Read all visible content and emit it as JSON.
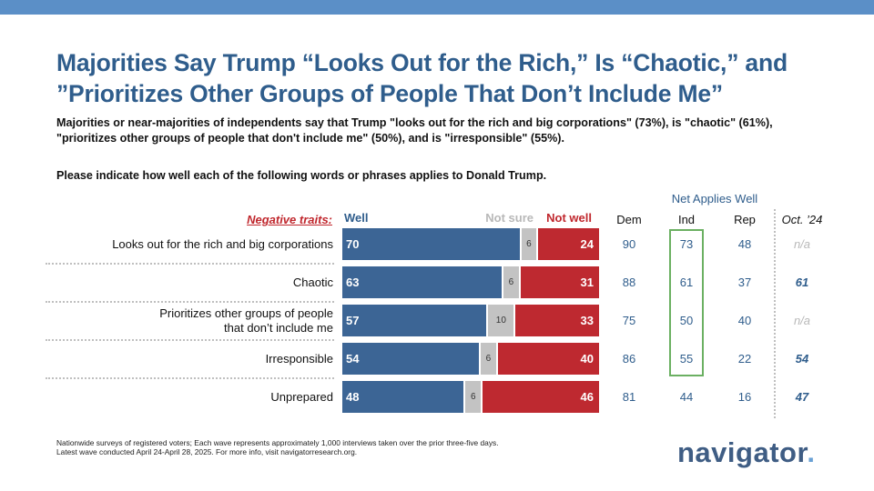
{
  "header": {
    "title_line1": "Majorities Say Trump “Looks Out for the Rich,” Is “Chaotic,” and",
    "title_line2": "”Prioritizes Other Groups of People That Don’t Include Me”",
    "subtitle_line1": "Majorities or near-majorities of independents say that Trump \"looks out for the rich and big corporations\" (73%), is \"chaotic\" (61%),",
    "subtitle_line2": "\"prioritizes other groups of people that don't include me\" (50%), and is \"irresponsible\" (55%).",
    "question": "Please indicate how well each of the following words or phrases applies to Donald Trump."
  },
  "colors": {
    "band": "#5b8fc7",
    "title": "#2f5d8c",
    "well": "#3c6595",
    "not_sure": "#c3c3c3",
    "not_well": "#be2930",
    "ind_highlight": "#6bb062"
  },
  "chart_data": {
    "type": "bar",
    "stacked": true,
    "orientation": "horizontal",
    "group_label": "Negative traits:",
    "categories": [
      "Looks out for the rich and big corporations",
      "Chaotic",
      "Prioritizes other groups of people that don’t include me",
      "Irresponsible",
      "Unprepared"
    ],
    "category_lines": [
      [
        "Looks out for the rich and big corporations"
      ],
      [
        "Chaotic"
      ],
      [
        "Prioritizes other groups of people",
        "that don’t include me"
      ],
      [
        "Irresponsible"
      ],
      [
        "Unprepared"
      ]
    ],
    "series": [
      {
        "name": "Well",
        "values": [
          70,
          63,
          57,
          54,
          48
        ]
      },
      {
        "name": "Not sure",
        "values": [
          6,
          6,
          10,
          6,
          6
        ]
      },
      {
        "name": "Not well",
        "values": [
          24,
          31,
          33,
          40,
          46
        ]
      }
    ],
    "xlim": [
      0,
      100
    ],
    "net_title": "Net Applies Well",
    "net_columns": [
      {
        "name": "Dem",
        "values": [
          "90",
          "88",
          "75",
          "86",
          "81"
        ]
      },
      {
        "name": "Ind",
        "values": [
          "73",
          "61",
          "50",
          "55",
          "44"
        ]
      },
      {
        "name": "Rep",
        "values": [
          "48",
          "37",
          "40",
          "22",
          "16"
        ]
      },
      {
        "name": "Oct. ’24",
        "values": [
          "n/a",
          "61",
          "n/a",
          "54",
          "47"
        ]
      }
    ],
    "highlight": {
      "column": "Ind",
      "rows": [
        0,
        1,
        2,
        3
      ]
    }
  },
  "footnote_line1": "Nationwide surveys of registered voters; Each wave represents approximately 1,000 interviews taken over the prior three-five days.",
  "footnote_line2": "Latest wave conducted April 24-April 28, 2025. For more info, visit navigatorresearch.org.",
  "logo": {
    "text": "navigator",
    "dot": "."
  }
}
